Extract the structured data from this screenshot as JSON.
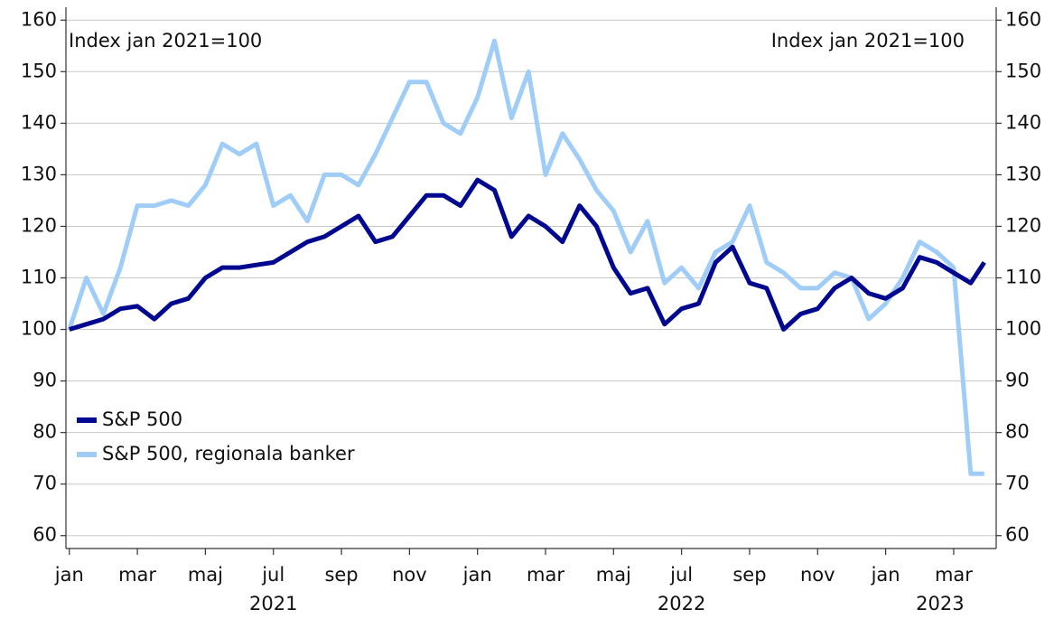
{
  "chart_data": {
    "type": "line",
    "y_label": "Index jan 2021=100",
    "y2_label": "Index jan 2021=100",
    "x": [
      0,
      0.5,
      1,
      1.5,
      2,
      2.5,
      3,
      3.5,
      4,
      4.5,
      5,
      5.5,
      6,
      6.5,
      7,
      7.5,
      8,
      8.5,
      9,
      9.5,
      10,
      10.5,
      11,
      11.5,
      12,
      12.5,
      13,
      13.5,
      14,
      14.5,
      15,
      15.5,
      16,
      16.5,
      17,
      17.5,
      18,
      18.5,
      19,
      19.5,
      20,
      20.5,
      21,
      21.5,
      22,
      22.5,
      23,
      23.5,
      24,
      24.5,
      25,
      25.5,
      26,
      26.5,
      26.9
    ],
    "series": [
      {
        "name": "S&P 500",
        "color": "#00088f",
        "values": [
          100,
          101,
          102,
          104,
          104.5,
          102,
          105,
          106,
          110,
          112,
          112,
          112.5,
          113,
          115,
          117,
          118,
          120,
          122,
          117,
          118,
          122,
          126,
          126,
          124,
          129,
          127,
          118,
          122,
          120,
          117,
          124,
          120,
          112,
          107,
          108,
          101,
          104,
          105,
          113,
          116,
          109,
          108,
          100,
          103,
          104,
          108,
          110,
          107,
          106,
          108,
          114,
          113,
          111,
          109,
          113
        ]
      },
      {
        "name": "S&P 500, regionala banker",
        "color": "#9fcdf8",
        "values": [
          100,
          110,
          103,
          112,
          124,
          124,
          125,
          124,
          128,
          136,
          134,
          136,
          124,
          126,
          121,
          130,
          130,
          128,
          134,
          141,
          148,
          148,
          140,
          138,
          145,
          156,
          141,
          150,
          130,
          138,
          133,
          127,
          123,
          115,
          121,
          109,
          112,
          108,
          115,
          117,
          124,
          113,
          111,
          108,
          108,
          111,
          110,
          102,
          105,
          110,
          117,
          115,
          112,
          72,
          72
        ]
      }
    ],
    "xlim": [
      -0.1,
      27.25
    ],
    "xticks": [
      {
        "value": 0,
        "label": "jan"
      },
      {
        "value": 2,
        "label": "mar"
      },
      {
        "value": 4,
        "label": "maj"
      },
      {
        "value": 6,
        "label": "jul"
      },
      {
        "value": 8,
        "label": "sep"
      },
      {
        "value": 10,
        "label": "nov"
      },
      {
        "value": 12,
        "label": "jan"
      },
      {
        "value": 14,
        "label": "mar"
      },
      {
        "value": 16,
        "label": "maj"
      },
      {
        "value": 18,
        "label": "jul"
      },
      {
        "value": 20,
        "label": "sep"
      },
      {
        "value": 22,
        "label": "nov"
      },
      {
        "value": 24,
        "label": "jan"
      },
      {
        "value": 26,
        "label": "mar"
      }
    ],
    "x_years": [
      "2021",
      "2022",
      "2023"
    ],
    "ylim": [
      57.5,
      162.5
    ],
    "yticks": [
      60,
      70,
      80,
      90,
      100,
      110,
      120,
      130,
      140,
      150,
      160
    ],
    "y2lim": [
      57.5,
      162.5
    ],
    "y2ticks": [
      60,
      70,
      80,
      90,
      100,
      110,
      120,
      130,
      140,
      150,
      160
    ],
    "grid": true,
    "legend": "lower left"
  }
}
